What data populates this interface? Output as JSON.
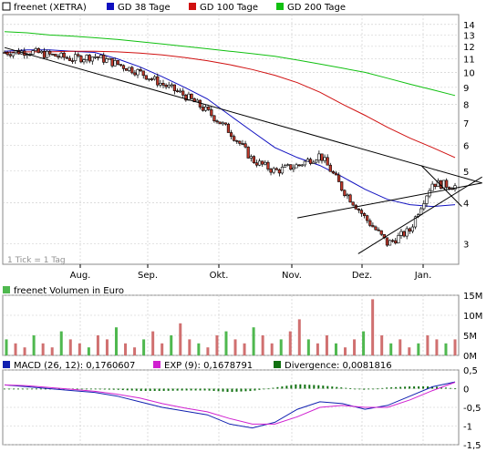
{
  "colors": {
    "price": "#000000",
    "up": "#ffffff",
    "down": "#c0392b",
    "gd38": "#1010c0",
    "gd100": "#d01010",
    "gd200": "#10c010",
    "trend": "#000000",
    "grid": "#c8c8c8",
    "panel_bg": "#ffffff",
    "macd": "#1020b0",
    "exp": "#d020d0",
    "divergence": "#107010",
    "vol_up": "#4fb84f",
    "vol_down": "#d07070"
  },
  "chart_data": [
    {
      "type": "candlestick",
      "title": "",
      "legend": [
        {
          "name": "freenet (XETRA)",
          "color": "#ffffff"
        },
        {
          "name": "GD 38 Tage",
          "color": "#1010c0"
        },
        {
          "name": "GD 100 Tage",
          "color": "#d01010"
        },
        {
          "name": "GD 200 Tage",
          "color": "#10c010"
        }
      ],
      "scale": "log",
      "ylim": [
        2.6,
        15.0
      ],
      "yticks": [
        "14",
        "13",
        "12",
        "11",
        "10",
        "9",
        "8",
        "7",
        "6",
        "5",
        "4",
        "3"
      ],
      "months": [
        "Aug.",
        "Sep.",
        "Okt.",
        "Nov.",
        "Dez.",
        "Jan."
      ],
      "note": "1 Tick = 1 Tag",
      "x": [
        0,
        10,
        20,
        30,
        40,
        50,
        60,
        70,
        80,
        90,
        100,
        110,
        120,
        130,
        140,
        150,
        160,
        170,
        180,
        190,
        200
      ],
      "close": [
        11.5,
        11.6,
        11.3,
        11.0,
        11.2,
        10.6,
        10.0,
        9.2,
        8.5,
        7.6,
        6.6,
        5.4,
        5.0,
        5.2,
        5.6,
        4.4,
        3.6,
        3.0,
        3.3,
        4.6,
        4.5
      ],
      "series": [
        {
          "name": "GD 38 Tage",
          "values": [
            11.6,
            11.7,
            11.7,
            11.6,
            11.5,
            11.0,
            10.4,
            9.7,
            9.0,
            8.3,
            7.4,
            6.6,
            5.9,
            5.5,
            5.2,
            4.8,
            4.4,
            4.1,
            3.95,
            3.9,
            3.95
          ]
        },
        {
          "name": "GD 100 Tage",
          "values": [
            11.5,
            11.55,
            11.55,
            11.6,
            11.6,
            11.55,
            11.45,
            11.3,
            11.1,
            10.85,
            10.55,
            10.2,
            9.8,
            9.3,
            8.7,
            8.0,
            7.4,
            6.8,
            6.3,
            5.9,
            5.5
          ]
        },
        {
          "name": "GD 200 Tage",
          "values": [
            13.3,
            13.2,
            13.0,
            12.9,
            12.75,
            12.6,
            12.4,
            12.2,
            12.0,
            11.8,
            11.6,
            11.4,
            11.2,
            10.9,
            10.6,
            10.3,
            10.0,
            9.6,
            9.2,
            8.85,
            8.5
          ]
        }
      ]
    },
    {
      "type": "bar",
      "title": "freenet Volumen in Euro",
      "yticks": [
        "15M",
        "10M",
        "5M",
        "0M"
      ],
      "ylim": [
        0,
        15
      ],
      "values": [
        4,
        3,
        2,
        5,
        3,
        2,
        6,
        4,
        3,
        2,
        5,
        4,
        7,
        3,
        2,
        4,
        6,
        3,
        5,
        8,
        4,
        3,
        2,
        5,
        6,
        4,
        3,
        7,
        5,
        3,
        4,
        6,
        9,
        4,
        3,
        5,
        3,
        2,
        4,
        6,
        14,
        5,
        3,
        4,
        2,
        3,
        5,
        4,
        3,
        4
      ]
    },
    {
      "type": "line",
      "title": "",
      "legend": [
        {
          "name": "MACD (26, 12): 0,1760607",
          "color": "#1020b0"
        },
        {
          "name": "EXP (9): 0,1678791",
          "color": "#d020d0"
        },
        {
          "name": "Divergence: 0,0081816",
          "color": "#107010"
        }
      ],
      "yticks": [
        "0,5",
        "0",
        "-0,5",
        "-1",
        "-1,5"
      ],
      "ylim": [
        -1.5,
        0.5
      ],
      "x": [
        0,
        10,
        20,
        30,
        40,
        50,
        60,
        70,
        80,
        90,
        100,
        110,
        120,
        130,
        140,
        150,
        160,
        170,
        180,
        190,
        200
      ],
      "series": [
        {
          "name": "MACD (26, 12): 0,1760607",
          "values": [
            0.1,
            0.05,
            0.0,
            -0.05,
            -0.1,
            -0.2,
            -0.35,
            -0.5,
            -0.6,
            -0.7,
            -0.95,
            -1.05,
            -0.9,
            -0.55,
            -0.35,
            -0.4,
            -0.55,
            -0.45,
            -0.2,
            0.05,
            0.18
          ]
        },
        {
          "name": "EXP (9): 0,1678791",
          "values": [
            0.1,
            0.08,
            0.03,
            -0.02,
            -0.07,
            -0.15,
            -0.25,
            -0.4,
            -0.52,
            -0.62,
            -0.8,
            -0.95,
            -0.95,
            -0.75,
            -0.5,
            -0.45,
            -0.5,
            -0.5,
            -0.3,
            -0.05,
            0.17
          ]
        }
      ]
    }
  ]
}
